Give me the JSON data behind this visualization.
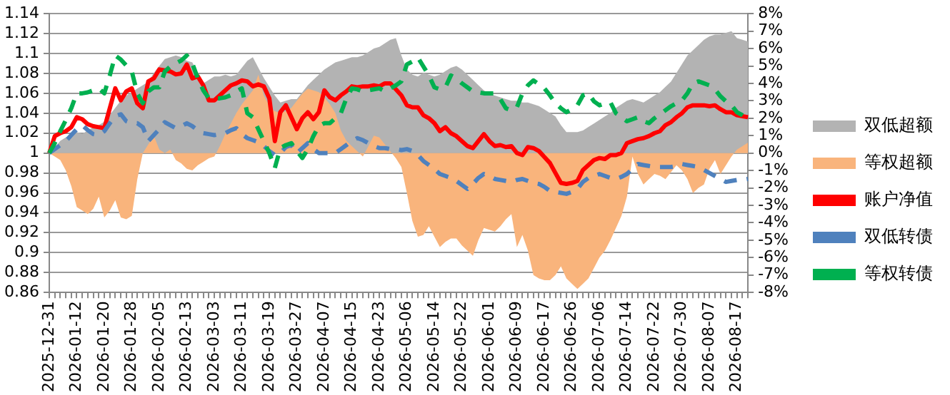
{
  "chart_data": {
    "type": "line",
    "legend": "right",
    "grid": "y",
    "categories": [
      "2025-12-31",
      null,
      null,
      null,
      null,
      "2026-01-12",
      null,
      null,
      null,
      null,
      "2026-01-20",
      null,
      null,
      null,
      null,
      "2026-01-28",
      null,
      null,
      null,
      null,
      "2026-02-05",
      null,
      null,
      null,
      null,
      "2026-02-13",
      null,
      null,
      null,
      null,
      "2026-03-03",
      null,
      null,
      null,
      null,
      "2026-03-11",
      null,
      null,
      null,
      null,
      "2026-03-19",
      null,
      null,
      null,
      null,
      "2026-03-27",
      null,
      null,
      null,
      null,
      "2026-04-07",
      null,
      null,
      null,
      null,
      "2026-04-15",
      null,
      null,
      null,
      null,
      "2026-04-23",
      null,
      null,
      null,
      null,
      "2026-05-06",
      null,
      null,
      null,
      null,
      "2026-05-14",
      null,
      null,
      null,
      null,
      "2026-05-22",
      null,
      null,
      null,
      null,
      "2026-06-01",
      null,
      null,
      null,
      null,
      "2026-06-09",
      null,
      null,
      null,
      null,
      "2026-06-17",
      null,
      null,
      null,
      null,
      "2026-06-26",
      null,
      null,
      null,
      null,
      "2026-07-06",
      null,
      null,
      null,
      null,
      "2026-07-14",
      null,
      null,
      null,
      null,
      "2026-07-22",
      null,
      null,
      null,
      null,
      "2026-07-30",
      null,
      null,
      null,
      null,
      "2026-08-07",
      null,
      null,
      null,
      null,
      "2026-08-17",
      null,
      null
    ],
    "ylim": [
      0.86,
      1.14
    ],
    "yticks": [
      0.86,
      0.88,
      0.9,
      0.92,
      0.94,
      0.96,
      0.98,
      1,
      1.02,
      1.04,
      1.06,
      1.08,
      1.1,
      1.12,
      1.14
    ],
    "y2lim": [
      -8,
      8
    ],
    "y2ticks": [
      {
        "value": -8,
        "label": "-8%"
      },
      {
        "value": -7,
        "label": "-7%"
      },
      {
        "value": -6,
        "label": "-6%"
      },
      {
        "value": -5,
        "label": "-5%"
      },
      {
        "value": -4,
        "label": "-4%"
      },
      {
        "value": -3,
        "label": "-3%"
      },
      {
        "value": -2,
        "label": "-2%"
      },
      {
        "value": -1,
        "label": "-1%"
      },
      {
        "value": 0,
        "label": "0%"
      },
      {
        "value": 1,
        "label": "1%"
      },
      {
        "value": 2,
        "label": "2%"
      },
      {
        "value": 3,
        "label": "3%"
      },
      {
        "value": 4,
        "label": "4%"
      },
      {
        "value": 5,
        "label": "5%"
      },
      {
        "value": 6,
        "label": "6%"
      },
      {
        "value": 7,
        "label": "7%"
      },
      {
        "value": 8,
        "label": "8%"
      }
    ],
    "series": [
      {
        "name": "双低超额",
        "type": "area",
        "axis": "y2",
        "color": "#b3b3b3",
        "values": [
          0,
          0.3,
          0.7,
          0.9,
          1.0,
          1.2,
          1.1,
          1.3,
          1.5,
          1.6,
          1.8,
          2.2,
          2.6,
          3.0,
          3.3,
          3.5,
          3.7,
          3.9,
          4.1,
          4.6,
          5.0,
          5.4,
          5.5,
          5.6,
          5.5,
          5.3,
          5.2,
          4.6,
          4.0,
          4.2,
          4.4,
          4.4,
          4.5,
          4.4,
          4.5,
          4.9,
          5.3,
          5.5,
          4.9,
          4.3,
          3.8,
          3.3,
          2.9,
          3.0,
          3.1,
          3.1,
          3.5,
          3.9,
          4.2,
          4.5,
          4.8,
          5.0,
          5.2,
          5.3,
          5.4,
          5.5,
          5.5,
          5.6,
          5.8,
          6.0,
          6.1,
          6.3,
          6.5,
          6.6,
          5.6,
          4.8,
          4.5,
          4.4,
          4.6,
          4.5,
          4.4,
          4.5,
          4.7,
          4.9,
          5.0,
          4.8,
          4.5,
          4.2,
          3.9,
          3.6,
          3.4,
          3.3,
          3.2,
          3.1,
          3.0,
          3.0,
          2.9,
          2.9,
          2.8,
          2.7,
          2.5,
          2.3,
          2.1,
          1.6,
          1.2,
          1.2,
          1.2,
          1.3,
          1.5,
          1.7,
          1.9,
          2.1,
          2.3,
          2.6,
          2.8,
          3.0,
          3.1,
          3.0,
          2.9,
          3.1,
          3.3,
          3.5,
          3.8,
          4.1,
          4.6,
          5.1,
          5.6,
          5.9,
          6.2,
          6.5,
          6.7,
          6.8,
          6.8,
          6.9,
          7.0,
          6.6,
          6.5,
          6.4
        ]
      },
      {
        "name": "等权超额",
        "type": "area",
        "axis": "y2",
        "color": "#f9b47c",
        "values": [
          0,
          -0.2,
          -0.4,
          -1.0,
          -1.9,
          -3.1,
          -3.3,
          -3.5,
          -3.2,
          -2.5,
          -3.7,
          -3.3,
          -2.7,
          -3.7,
          -3.8,
          -3.6,
          -1.5,
          0,
          0.5,
          1.0,
          0.2,
          0,
          0.2,
          -0.4,
          -0.6,
          -0.9,
          -1.0,
          -0.7,
          -0.5,
          -0.3,
          -0.2,
          0.4,
          1.1,
          1.7,
          2.3,
          2.8,
          3.2,
          3.6,
          4.5,
          3.3,
          2.7,
          2.4,
          2.3,
          2.4,
          2.6,
          3.0,
          3.4,
          3.7,
          3.6,
          3.5,
          3.2,
          2.8,
          2.3,
          1.3,
          0.7,
          0.4,
          0.1,
          -0.2,
          0.4,
          1.0,
          0.9,
          0.5,
          0.1,
          -0.3,
          -0.8,
          -2.3,
          -3.9,
          -4.8,
          -4.7,
          -4.2,
          -4.8,
          -5.4,
          -5.1,
          -4.9,
          -4.9,
          -5.3,
          -5.6,
          -5.9,
          -5.0,
          -4.3,
          -4.4,
          -4.5,
          -4.2,
          -3.8,
          -3.5,
          -5.4,
          -4.7,
          -5.6,
          -7.0,
          -7.2,
          -7.3,
          -7.3,
          -7.0,
          -6.5,
          -7.2,
          -7.5,
          -7.8,
          -7.5,
          -7.2,
          -6.6,
          -6.0,
          -5.6,
          -5.0,
          -4.3,
          -3.6,
          -2.5,
          -0.2,
          -1.2,
          -1.8,
          -1.5,
          -1.2,
          -1.3,
          -1.5,
          -1.1,
          -0.7,
          -1.0,
          -1.5,
          -2.3,
          -2.0,
          -1.8,
          -0.9,
          -0.4,
          -1.2,
          -0.7,
          -0.2,
          0.2,
          0.4,
          0.6
        ]
      },
      {
        "name": "账户净值",
        "line_style": "solid",
        "color": "#ff0000",
        "values": [
          1.0,
          1.017,
          1.02,
          1.022,
          1.026,
          1.036,
          1.034,
          1.029,
          1.027,
          1.026,
          1.025,
          1.045,
          1.065,
          1.053,
          1.062,
          1.065,
          1.05,
          1.045,
          1.072,
          1.075,
          1.084,
          1.083,
          1.082,
          1.079,
          1.08,
          1.089,
          1.075,
          1.077,
          1.068,
          1.053,
          1.053,
          1.058,
          1.063,
          1.068,
          1.07,
          1.073,
          1.072,
          1.067,
          1.069,
          1.067,
          1.055,
          1.012,
          1.041,
          1.048,
          1.036,
          1.024,
          1.035,
          1.041,
          1.034,
          1.041,
          1.063,
          1.056,
          1.053,
          1.058,
          1.062,
          1.067,
          1.066,
          1.067,
          1.067,
          1.068,
          1.067,
          1.07,
          1.07,
          1.064,
          1.058,
          1.048,
          1.046,
          1.046,
          1.038,
          1.035,
          1.03,
          1.022,
          1.026,
          1.02,
          1.017,
          1.012,
          1.007,
          1.005,
          1.012,
          1.019,
          1.012,
          1.007,
          1.008,
          1.006,
          1.007,
          1.0,
          0.998,
          1.006,
          1.005,
          1.002,
          0.996,
          0.99,
          0.98,
          0.97,
          0.969,
          0.97,
          0.972,
          0.983,
          0.988,
          0.993,
          0.995,
          0.994,
          0.998,
          0.998,
          1.0,
          1.01,
          1.012,
          1.014,
          1.015,
          1.017,
          1.02,
          1.022,
          1.028,
          1.031,
          1.036,
          1.04,
          1.046,
          1.048,
          1.048,
          1.048,
          1.047,
          1.048,
          1.044,
          1.041,
          1.041,
          1.038,
          1.037,
          1.036
        ]
      },
      {
        "name": "双低转债",
        "line_style": "dashed",
        "color": "#4f81bd",
        "values": [
          1.0,
          1.004,
          1.008,
          1.012,
          1.018,
          1.024,
          1.028,
          1.023,
          1.019,
          1.018,
          1.022,
          1.03,
          1.037,
          1.039,
          1.032,
          1.03,
          1.03,
          1.026,
          1.012,
          1.018,
          1.024,
          1.031,
          1.028,
          1.025,
          1.027,
          1.03,
          1.027,
          1.023,
          1.02,
          1.019,
          1.018,
          1.019,
          1.02,
          1.023,
          1.025,
          1.019,
          1.015,
          1.013,
          1.011,
          1.007,
          1.002,
          0.998,
          1.0,
          1.006,
          1.008,
          1.0,
          1.005,
          1.01,
          1.004,
          1.0,
          1.0,
          1.0,
          1.0,
          1.004,
          1.008,
          1.012,
          1.015,
          1.013,
          1.01,
          1.007,
          1.005,
          1.005,
          1.004,
          1.004,
          1.003,
          1.004,
          1.002,
          0.998,
          0.992,
          0.988,
          0.984,
          0.979,
          0.977,
          0.975,
          0.972,
          0.968,
          0.964,
          0.969,
          0.975,
          0.979,
          0.977,
          0.974,
          0.973,
          0.972,
          0.971,
          0.973,
          0.974,
          0.972,
          0.97,
          0.969,
          0.966,
          0.962,
          0.961,
          0.96,
          0.959,
          0.961,
          0.964,
          0.971,
          0.975,
          0.977,
          0.979,
          0.977,
          0.975,
          0.974,
          0.976,
          0.979,
          0.984,
          0.989,
          0.988,
          0.987,
          0.986,
          0.986,
          0.986,
          0.986,
          0.987,
          0.989,
          0.988,
          0.987,
          0.986,
          0.983,
          0.98,
          0.977,
          0.974,
          0.971,
          0.972,
          0.973,
          0.973,
          0.974
        ]
      },
      {
        "name": "等权转债",
        "line_style": "dashed",
        "color": "#00b050",
        "values": [
          1.0,
          1.01,
          1.022,
          1.033,
          1.045,
          1.06,
          1.06,
          1.061,
          1.063,
          1.065,
          1.06,
          1.078,
          1.098,
          1.094,
          1.088,
          1.082,
          1.06,
          1.05,
          1.062,
          1.066,
          1.066,
          1.082,
          1.087,
          1.09,
          1.093,
          1.098,
          1.09,
          1.075,
          1.063,
          1.055,
          1.055,
          1.055,
          1.056,
          1.058,
          1.062,
          1.065,
          1.04,
          1.036,
          1.024,
          1.012,
          1.0,
          0.985,
          1.005,
          1.008,
          1.01,
          1.002,
          0.995,
          1.004,
          1.017,
          1.027,
          1.03,
          1.03,
          1.035,
          1.04,
          1.055,
          1.065,
          1.064,
          1.062,
          1.063,
          1.064,
          1.065,
          1.062,
          1.065,
          1.068,
          1.072,
          1.089,
          1.092,
          1.096,
          1.087,
          1.078,
          1.066,
          1.064,
          1.066,
          1.078,
          1.075,
          1.07,
          1.066,
          1.062,
          1.061,
          1.06,
          1.06,
          1.06,
          1.054,
          1.045,
          1.043,
          1.046,
          1.06,
          1.068,
          1.073,
          1.069,
          1.065,
          1.058,
          1.05,
          1.045,
          1.041,
          1.044,
          1.048,
          1.058,
          1.06,
          1.052,
          1.048,
          1.05,
          1.051,
          1.04,
          1.036,
          1.032,
          1.034,
          1.036,
          1.032,
          1.03,
          1.035,
          1.039,
          1.043,
          1.047,
          1.05,
          1.053,
          1.06,
          1.07,
          1.072,
          1.07,
          1.068,
          1.064,
          1.057,
          1.052,
          1.048,
          1.041,
          1.038,
          1.034
        ]
      }
    ]
  }
}
